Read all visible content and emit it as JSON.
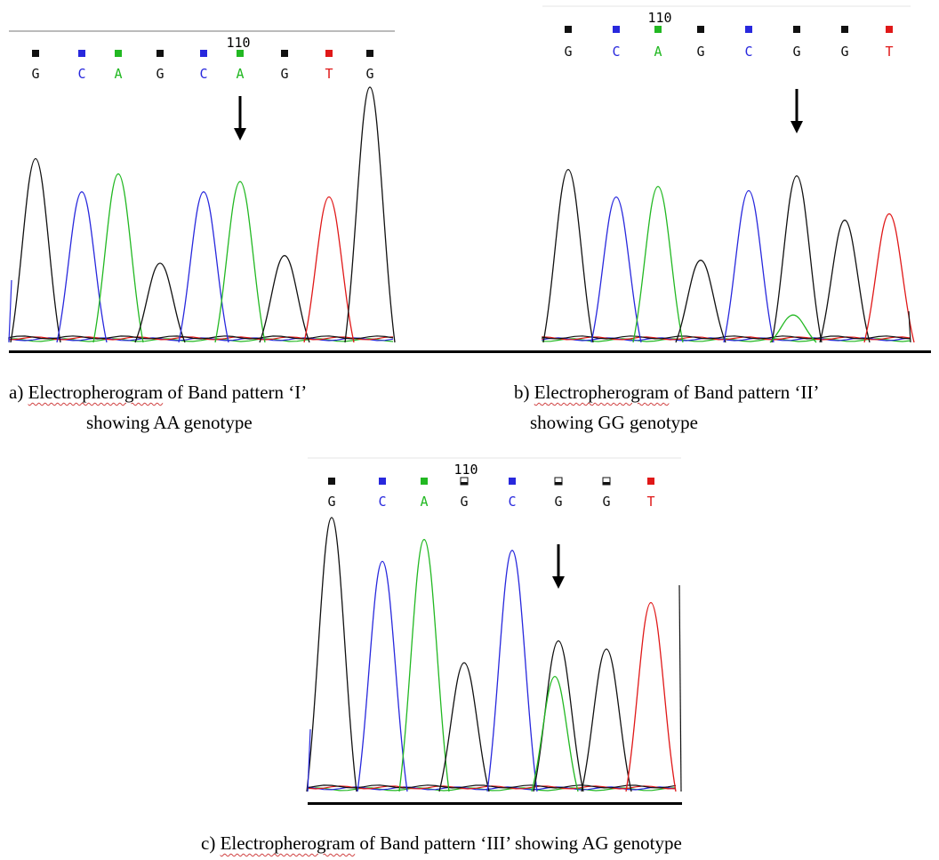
{
  "colors": {
    "A": "#22b822",
    "C": "#2828dd",
    "G": "#111111",
    "T": "#e01818"
  },
  "chart_data": [
    {
      "type": "line",
      "position_label": "110",
      "bases": [
        "G",
        "C",
        "A",
        "G",
        "C",
        "A",
        "G",
        "T",
        "G"
      ],
      "calls": [
        "filled",
        "filled",
        "filled",
        "filled",
        "filled",
        "filled",
        "filled",
        "filled",
        "filled"
      ],
      "peaks": [
        {
          "base": "G",
          "height": 0.72
        },
        {
          "base": "C",
          "height": 0.59
        },
        {
          "base": "A",
          "height": 0.66
        },
        {
          "base": "G",
          "height": 0.31
        },
        {
          "base": "C",
          "height": 0.59
        },
        {
          "base": "A",
          "height": 0.63
        },
        {
          "base": "G",
          "height": 0.34
        },
        {
          "base": "T",
          "height": 0.57
        },
        {
          "base": "G",
          "height": 1.0
        }
      ],
      "minor_peaks": [],
      "arrow_at": 5,
      "caption": {
        "label": "a) ",
        "term": "Electropherogram",
        "rest1": " of Band pattern ‘I’",
        "line2": "showing AA genotype"
      }
    },
    {
      "type": "line",
      "position_label": "110",
      "bases": [
        "G",
        "C",
        "A",
        "G",
        "C",
        "G",
        "G",
        "T"
      ],
      "calls": [
        "filled",
        "filled",
        "filled",
        "filled",
        "filled",
        "filled",
        "filled",
        "filled"
      ],
      "peaks": [
        {
          "base": "G",
          "height": 0.82
        },
        {
          "base": "C",
          "height": 0.69
        },
        {
          "base": "A",
          "height": 0.74
        },
        {
          "base": "G",
          "height": 0.39
        },
        {
          "base": "C",
          "height": 0.72
        },
        {
          "base": "G",
          "height": 0.79
        },
        {
          "base": "G",
          "height": 0.58
        },
        {
          "base": "T",
          "height": 0.61
        }
      ],
      "minor_peaks": [
        {
          "index": 5,
          "base": "A",
          "height": 0.13
        }
      ],
      "arrow_at": 5,
      "caption": {
        "label": "b) ",
        "term": "Electropherogram",
        "rest1": " of Band pattern ‘II’",
        "line2": "showing GG genotype"
      }
    },
    {
      "type": "line",
      "position_label": "110",
      "bases": [
        "G",
        "C",
        "A",
        "G",
        "C",
        "G",
        "G",
        "T"
      ],
      "calls": [
        "filled",
        "filled",
        "filled",
        "open",
        "filled",
        "open",
        "open",
        "filled"
      ],
      "peaks": [
        {
          "base": "G",
          "height": 1.0
        },
        {
          "base": "C",
          "height": 0.84
        },
        {
          "base": "A",
          "height": 0.92
        },
        {
          "base": "G",
          "height": 0.47
        },
        {
          "base": "C",
          "height": 0.88
        },
        {
          "base": "G",
          "height": 0.55
        },
        {
          "base": "G",
          "height": 0.52
        },
        {
          "base": "T",
          "height": 0.69
        }
      ],
      "minor_peaks": [
        {
          "index": 5,
          "base": "A",
          "height": 0.42
        }
      ],
      "arrow_at": 5,
      "caption": {
        "label": "c) ",
        "term": "Electropherogram",
        "rest1": " of Band pattern ‘III’ showing AG genotype",
        "line2": ""
      }
    }
  ]
}
